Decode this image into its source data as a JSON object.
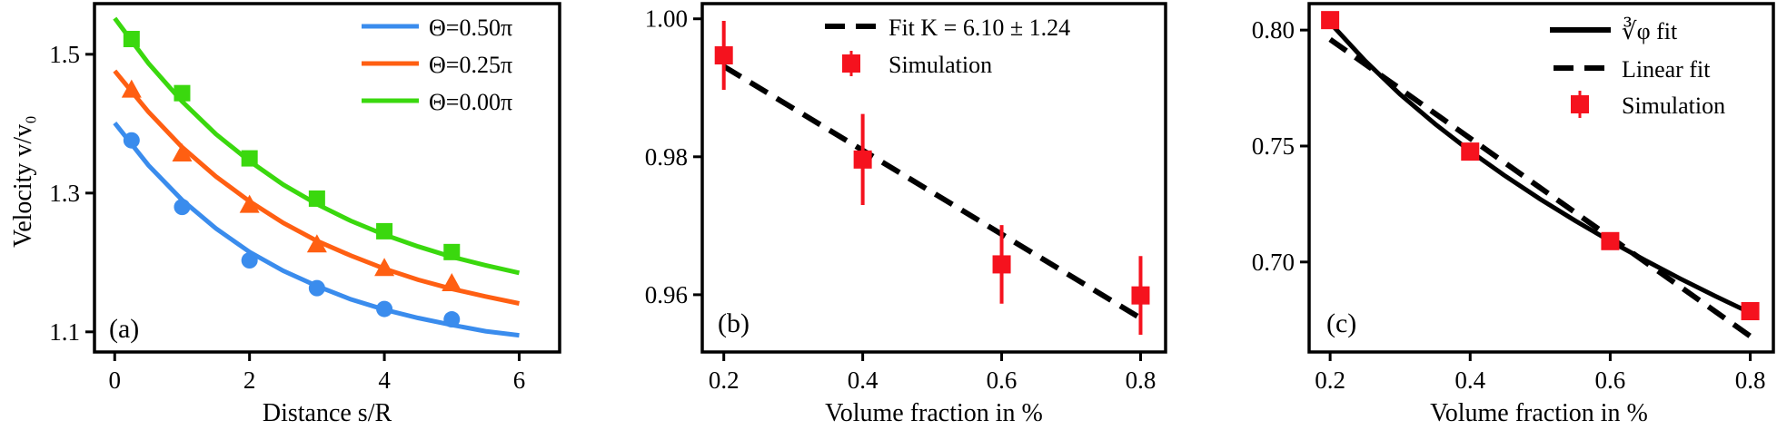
{
  "colors": {
    "blue": "#3a8ced",
    "orange": "#ff5f12",
    "green": "#3ad80e",
    "red": "#f5121e",
    "black": "#000000"
  },
  "chart_data": [
    {
      "type": "line",
      "panel_label": "(a)",
      "xlabel": "Distance s/R",
      "ylabel": "Velocity v/v₀",
      "xlim": [
        -0.3,
        6.6
      ],
      "ylim": [
        1.071,
        1.573
      ],
      "xticks": [
        0,
        2,
        4,
        6
      ],
      "xtick_labels": [
        "0",
        "2",
        "4",
        "6"
      ],
      "yticks": [
        1.1,
        1.3,
        1.5
      ],
      "ytick_labels": [
        "1.1",
        "1.3",
        "1.5"
      ],
      "legend_position": "top-right",
      "series": [
        {
          "name": "Θ=0.50π",
          "color_key": "blue",
          "marker": "circle",
          "points_x": [
            0.25,
            1,
            2,
            3,
            4,
            5
          ],
          "points_y": [
            1.376,
            1.28,
            1.203,
            1.163,
            1.133,
            1.118
          ],
          "curve_x": [
            0,
            0.5,
            1,
            1.5,
            2,
            2.5,
            3,
            3.5,
            4,
            4.5,
            5,
            5.5,
            6
          ],
          "curve_y": [
            1.401,
            1.34,
            1.29,
            1.249,
            1.215,
            1.188,
            1.166,
            1.147,
            1.132,
            1.12,
            1.11,
            1.101,
            1.095
          ]
        },
        {
          "name": "Θ=0.25π",
          "color_key": "orange",
          "marker": "triangle",
          "points_x": [
            0.25,
            1,
            2,
            3,
            4,
            5
          ],
          "points_y": [
            1.448,
            1.356,
            1.282,
            1.225,
            1.191,
            1.169
          ],
          "curve_x": [
            0,
            0.5,
            1,
            1.5,
            2,
            2.5,
            3,
            3.5,
            4,
            4.5,
            5,
            5.5,
            6
          ],
          "curve_y": [
            1.476,
            1.417,
            1.366,
            1.324,
            1.288,
            1.257,
            1.231,
            1.21,
            1.191,
            1.175,
            1.162,
            1.151,
            1.141
          ]
        },
        {
          "name": "Θ=0.00π",
          "color_key": "green",
          "marker": "square",
          "points_x": [
            0.25,
            1,
            2,
            3,
            4,
            5
          ],
          "points_y": [
            1.522,
            1.444,
            1.35,
            1.292,
            1.245,
            1.215
          ],
          "curve_x": [
            0,
            0.5,
            1,
            1.5,
            2,
            2.5,
            3,
            3.5,
            4,
            4.5,
            5,
            5.5,
            6
          ],
          "curve_y": [
            1.552,
            1.487,
            1.432,
            1.385,
            1.346,
            1.312,
            1.284,
            1.26,
            1.24,
            1.223,
            1.208,
            1.196,
            1.185
          ]
        }
      ]
    },
    {
      "type": "scatter",
      "panel_label": "(b)",
      "xlabel": "Volume fraction in %",
      "ylabel": "",
      "xlim": [
        0.169,
        0.836
      ],
      "ylim": [
        0.9517,
        1.0022
      ],
      "xticks": [
        0.2,
        0.4,
        0.6,
        0.8
      ],
      "xtick_labels": [
        "0.2",
        "0.4",
        "0.6",
        "0.8"
      ],
      "yticks": [
        0.96,
        0.98,
        1.0
      ],
      "ytick_labels": [
        "0.96",
        "0.98",
        "1.00"
      ],
      "legend_position": "top-right",
      "fit": {
        "name": "Fit K = 6.10 ± 1.24",
        "style": "dashed",
        "x": [
          0.2,
          0.8
        ],
        "y": [
          0.9931,
          0.9566
        ]
      },
      "simulation": {
        "name": "Simulation",
        "x": [
          0.2,
          0.4,
          0.6,
          0.8
        ],
        "y": [
          0.9947,
          0.9796,
          0.9644,
          0.9599
        ],
        "yerr": [
          0.005,
          0.0066,
          0.0057,
          0.0057
        ]
      }
    },
    {
      "type": "scatter",
      "panel_label": "(c)",
      "xlabel": "Volume fraction in %",
      "ylabel": "",
      "xlim": [
        0.17,
        0.833
      ],
      "ylim": [
        0.6612,
        0.8114
      ],
      "xticks": [
        0.2,
        0.4,
        0.6,
        0.8
      ],
      "xtick_labels": [
        "0.2",
        "0.4",
        "0.6",
        "0.8"
      ],
      "yticks": [
        0.7,
        0.75,
        0.8
      ],
      "ytick_labels": [
        "0.70",
        "0.75",
        "0.80"
      ],
      "legend_position": "top-right",
      "fit_cuberoot": {
        "name": "∛φ fit",
        "style": "solid",
        "x": [
          0.2,
          0.25,
          0.3,
          0.35,
          0.4,
          0.45,
          0.5,
          0.55,
          0.6,
          0.65,
          0.7,
          0.75,
          0.8
        ],
        "y": [
          0.8031,
          0.7867,
          0.7723,
          0.7595,
          0.7478,
          0.7371,
          0.7271,
          0.7178,
          0.709,
          0.7007,
          0.6928,
          0.6853,
          0.6781
        ]
      },
      "fit_linear": {
        "name": "Linear fit",
        "style": "dashed",
        "x": [
          0.2,
          0.8
        ],
        "y": [
          0.796,
          0.668
        ]
      },
      "simulation": {
        "name": "Simulation",
        "x": [
          0.2,
          0.4,
          0.6,
          0.8
        ],
        "y": [
          0.8043,
          0.7476,
          0.709,
          0.6788
        ],
        "yerr": [
          0.001,
          0.001,
          0.001,
          0.001
        ]
      }
    }
  ]
}
